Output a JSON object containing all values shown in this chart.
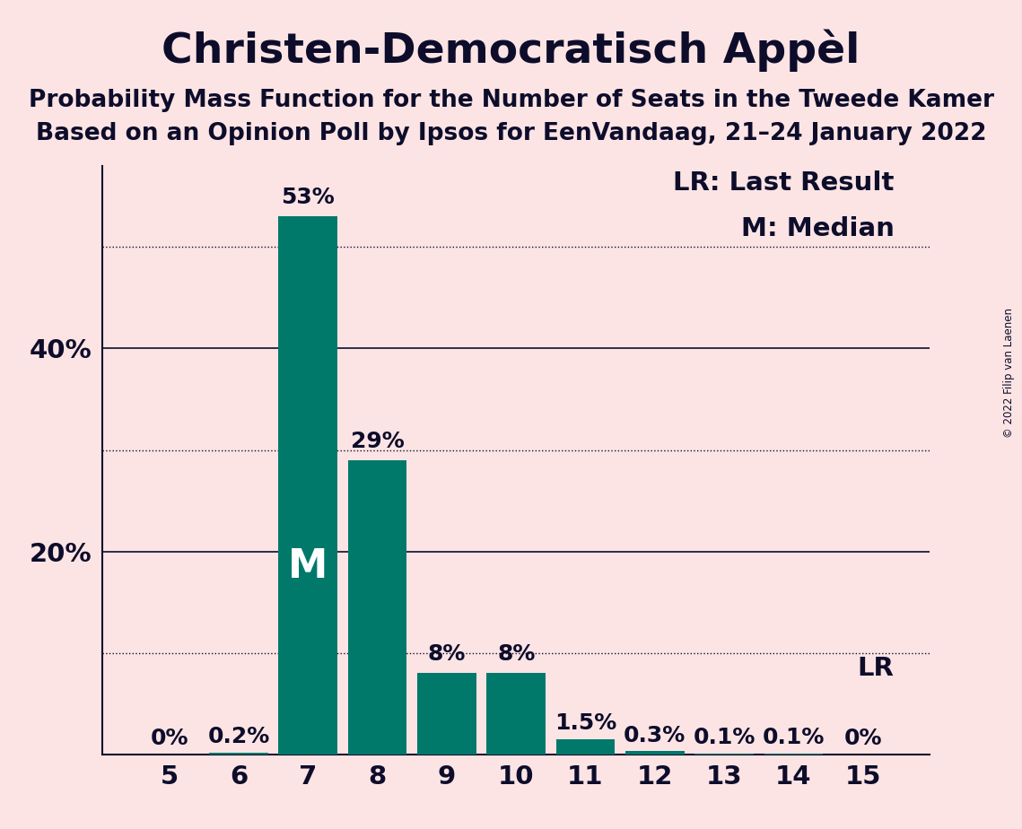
{
  "title": "Christen-Democratisch Appèl",
  "subtitle1": "Probability Mass Function for the Number of Seats in the Tweede Kamer",
  "subtitle2": "Based on an Opinion Poll by Ipsos for EenVandaag, 21–24 January 2022",
  "copyright": "© 2022 Filip van Laenen",
  "categories": [
    5,
    6,
    7,
    8,
    9,
    10,
    11,
    12,
    13,
    14,
    15
  ],
  "values": [
    0.0,
    0.2,
    53.0,
    29.0,
    8.0,
    8.0,
    1.5,
    0.3,
    0.1,
    0.1,
    0.0
  ],
  "labels": [
    "0%",
    "0.2%",
    "53%",
    "29%",
    "8%",
    "8%",
    "1.5%",
    "0.3%",
    "0.1%",
    "0.1%",
    "0%"
  ],
  "bar_color": "#00796b",
  "background_color": "#fce4e4",
  "text_color": "#0d0d2b",
  "median_bar": 7,
  "lr_bar": 15,
  "median_label": "M",
  "lr_label": "LR",
  "legend_lr": "LR: Last Result",
  "legend_m": "M: Median",
  "yticks": [
    20,
    40
  ],
  "ytick_labels": [
    "20%",
    "40%"
  ],
  "dotted_lines": [
    10,
    30,
    50
  ],
  "solid_lines": [
    0,
    20,
    40
  ],
  "ylim": [
    0,
    58
  ],
  "title_fontsize": 34,
  "subtitle_fontsize": 19,
  "axis_fontsize": 21,
  "label_fontsize": 18,
  "legend_fontsize": 21
}
